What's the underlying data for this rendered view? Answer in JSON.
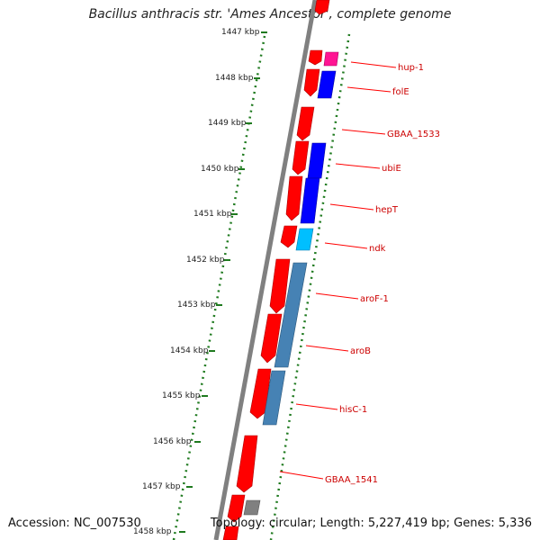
{
  "title": "Bacillus anthracis str. 'Ames Ancestor', complete genome",
  "footer": {
    "accession": "Accession: NC_007530",
    "topology": "Topology: circular; Length: 5,227,419 bp; Genes: 5,336"
  },
  "colors": {
    "backbone": "#808080",
    "tick": "#1f7a1f",
    "forward_gene": "#ff0000",
    "label": "#cc0000",
    "callout_line": "#ff0000",
    "pink": "#ff1493",
    "blue": "#0000ff",
    "cyan": "#00bfff",
    "steelblue": "#4682b4",
    "grey": "#808080"
  },
  "ticks": [
    {
      "label": "1447 kbp"
    },
    {
      "label": "1448 kbp"
    },
    {
      "label": "1449 kbp"
    },
    {
      "label": "1450 kbp"
    },
    {
      "label": "1451 kbp"
    },
    {
      "label": "1452 kbp"
    },
    {
      "label": "1453 kbp"
    },
    {
      "label": "1454 kbp"
    },
    {
      "label": "1455 kbp"
    },
    {
      "label": "1456 kbp"
    },
    {
      "label": "1457 kbp"
    },
    {
      "label": "1458 kbp"
    }
  ],
  "gene_labels": [
    {
      "name": "hup-1"
    },
    {
      "name": "folE"
    },
    {
      "name": "GBAA_1533"
    },
    {
      "name": "ubiE"
    },
    {
      "name": "hepT"
    },
    {
      "name": "ndk"
    },
    {
      "name": "aroF-1"
    },
    {
      "name": "aroB"
    },
    {
      "name": "hisC-1"
    },
    {
      "name": "GBAA_1541"
    }
  ]
}
